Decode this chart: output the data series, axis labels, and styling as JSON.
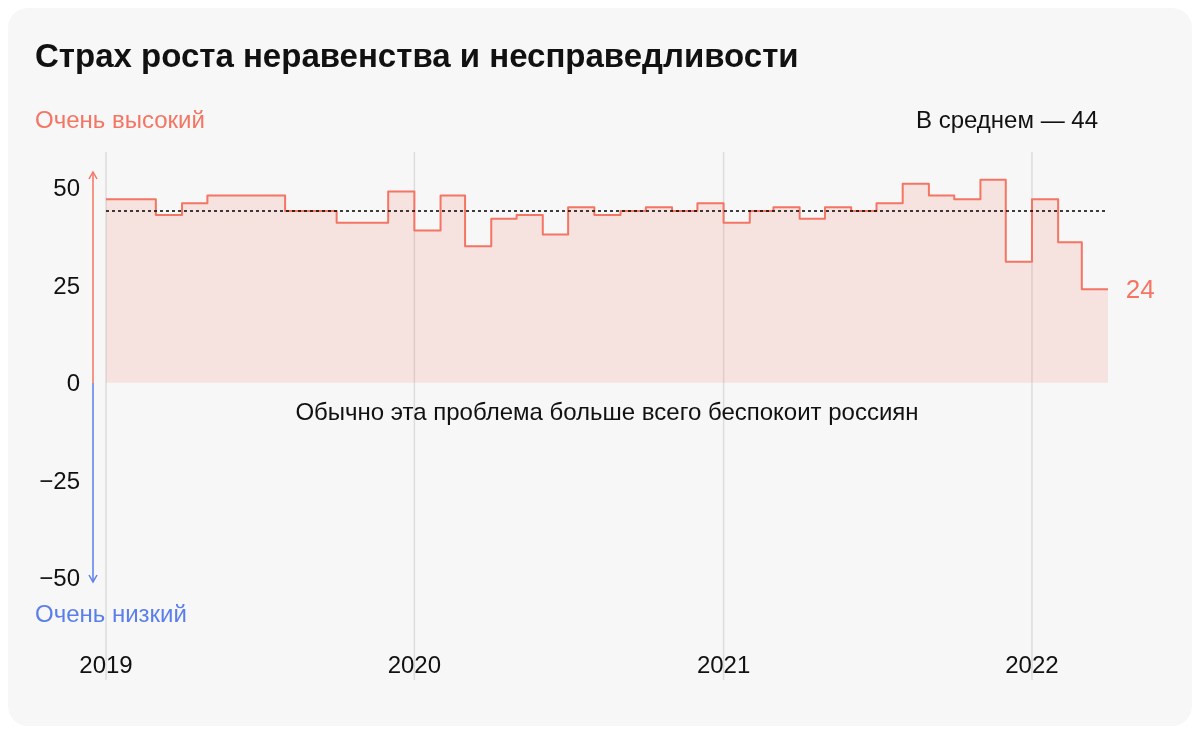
{
  "chart_data": {
    "type": "area",
    "title": "Страх роста неравенства и несправедливости",
    "x": [
      "2019-01",
      "2019-02",
      "2019-03",
      "2019-04",
      "2019-05",
      "2019-06",
      "2019-07",
      "2019-08",
      "2019-09",
      "2019-10",
      "2019-11",
      "2019-12",
      "2020-01",
      "2020-02",
      "2020-03",
      "2020-04",
      "2020-05",
      "2020-06",
      "2020-07",
      "2020-08",
      "2020-09",
      "2020-10",
      "2020-11",
      "2020-12",
      "2021-01",
      "2021-02",
      "2021-03",
      "2021-04",
      "2021-05",
      "2021-06",
      "2021-07",
      "2021-08",
      "2021-09",
      "2021-10",
      "2021-11",
      "2021-12",
      "2022-01",
      "2022-02",
      "2022-03",
      "2022-04"
    ],
    "series": [
      {
        "color": "#f47563",
        "values": [
          47,
          47,
          43,
          46,
          48,
          48,
          48,
          44,
          44,
          41,
          41,
          49,
          39,
          48,
          35,
          42,
          43,
          38,
          45,
          43,
          44,
          45,
          44,
          46,
          41,
          44,
          45,
          42,
          45,
          44,
          46,
          51,
          48,
          47,
          52,
          31,
          47,
          36,
          24,
          24
        ]
      }
    ],
    "xlim": [
      "2019-01",
      "2022-04"
    ],
    "xticks": [
      {
        "value": "2019",
        "label": "2019"
      },
      {
        "value": "2020",
        "label": "2020"
      },
      {
        "value": "2021",
        "label": "2021"
      },
      {
        "value": "2022",
        "label": "2022"
      }
    ],
    "ylim": [
      -51,
      54
    ],
    "yticks": [
      {
        "value": 50,
        "label": "50"
      },
      {
        "value": 25,
        "label": "25"
      },
      {
        "value": 0,
        "label": "0"
      },
      {
        "value": -25,
        "label": "−25"
      },
      {
        "value": -50,
        "label": "−50"
      }
    ],
    "grid": "x",
    "ylabel": "Очень высокий",
    "ref_lines": [
      {
        "axis": "y",
        "value": 44,
        "label": "В среднем — 44",
        "color": "#000000",
        "line_style": "dotted"
      }
    ],
    "annotations": [
      {
        "text": "24",
        "x": "2022-03",
        "y": 24
      },
      "Обычно эта проблема больше всего беспокоит россиян",
      "Очень низкий"
    ]
  }
}
